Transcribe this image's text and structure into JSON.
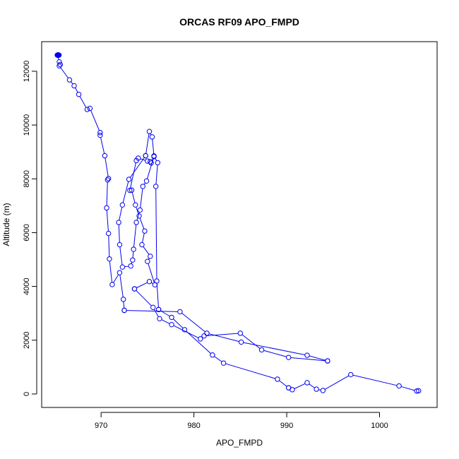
{
  "chart_data": {
    "type": "line",
    "title": "ORCAS RF09 APO_FMPD",
    "xlabel": "APO_FMPD",
    "ylabel": "Altitude (m)",
    "xlim": [
      963.6,
      1006.2
    ],
    "ylim": [
      -500,
      13100
    ],
    "xticks": [
      970,
      980,
      990,
      1000
    ],
    "yticks": [
      0,
      2000,
      4000,
      6000,
      8000,
      10000,
      12000
    ],
    "marker": "open-circle",
    "line_style": "connected-gaps",
    "color": "#0000ee",
    "grid": false,
    "series": [
      {
        "x": [
          965.3,
          965.5,
          965.6,
          965.5,
          966.6,
          967.1,
          967.6,
          968.5,
          968.8,
          969.9,
          969.9,
          970.4,
          970.8,
          970.7,
          970.6,
          970.8,
          970.9,
          971.2,
          972.0,
          972.4,
          972.5
        ],
        "y": [
          12600,
          12350,
          12250,
          12200,
          11680,
          11460,
          11140,
          10580,
          10620,
          9720,
          9620,
          8860,
          8010,
          7960,
          6920,
          5970,
          5020,
          4070,
          4510,
          3520,
          3110
        ],
        "segment": "descent-1"
      },
      {
        "x": [
          972.5,
          978.5,
          981.4,
          985.1,
          992.2,
          994.4
        ],
        "y": [
          3110,
          3060,
          2260,
          1930,
          1440,
          1230
        ],
        "segment": "low-leg-1"
      },
      {
        "x": [
          994.4,
          990.2,
          987.3,
          985.0,
          981.1,
          980.7,
          977.6,
          976.3,
          975.6,
          973.6
        ],
        "y": [
          1230,
          1360,
          1640,
          2260,
          2160,
          2050,
          2580,
          2800,
          3220,
          3910
        ],
        "segment": "climb-1"
      },
      {
        "x": [
          973.6,
          975.2,
          975.8,
          975.0,
          975.3,
          974.4,
          974.7,
          974.1,
          973.7,
          973.3,
          973.1,
          973.8,
          974.0,
          975.0,
          975.3,
          975.4,
          975.7
        ],
        "y": [
          3910,
          4180,
          4060,
          4930,
          5120,
          5550,
          6060,
          6620,
          7030,
          7580,
          7570,
          8680,
          8770,
          8660,
          8640,
          8590,
          8830
        ],
        "segment": "climb-2"
      },
      {
        "x": [
          975.7,
          974.9,
          974.5,
          974.2,
          973.8,
          973.5,
          973.4,
          973.2,
          972.3,
          972.0,
          971.9,
          972.3,
          973.0,
          974.8
        ],
        "y": [
          8830,
          7920,
          7720,
          6840,
          6380,
          5380,
          4980,
          4760,
          4720,
          5550,
          6380,
          7030,
          7980,
          8860
        ],
        "segment": "descent-2"
      },
      {
        "x": [
          974.8,
          975.2,
          975.5,
          975.7,
          976.1,
          975.9,
          976.0,
          976.2
        ],
        "y": [
          8860,
          9760,
          9560,
          8850,
          8600,
          7720,
          4200,
          3140
        ],
        "segment": "descent-3"
      },
      {
        "x": [
          976.2,
          977.6,
          979.0,
          982.0,
          983.2,
          989.0,
          990.2
        ],
        "y": [
          3140,
          2850,
          2390,
          1450,
          1150,
          550,
          230
        ],
        "segment": "low-leg-2"
      },
      {
        "x": [
          990.2,
          990.6,
          992.2,
          993.2,
          993.9,
          996.9,
          1002.1,
          1004.0,
          1004.2
        ],
        "y": [
          230,
          160,
          420,
          180,
          130,
          720,
          300,
          110,
          120
        ],
        "segment": "bottom"
      }
    ]
  }
}
